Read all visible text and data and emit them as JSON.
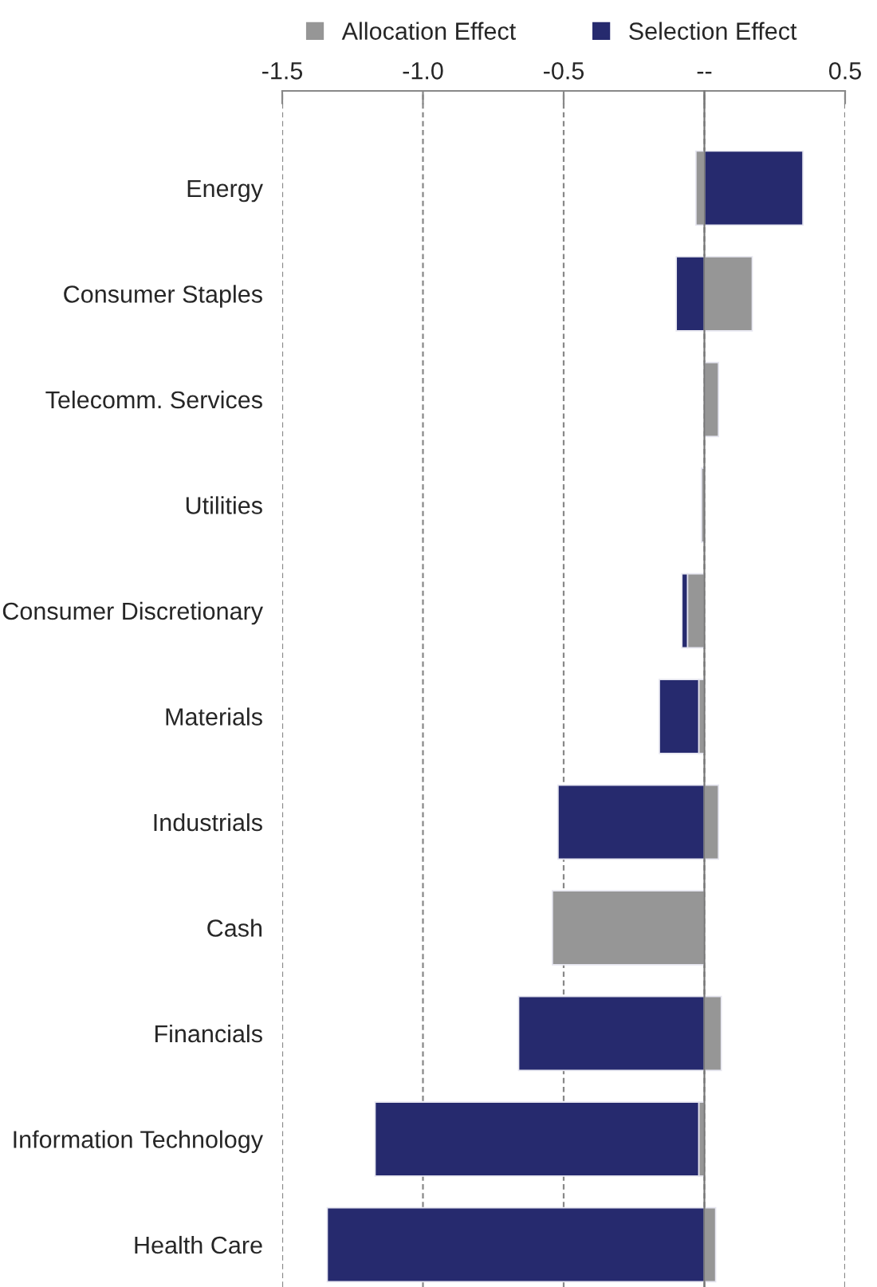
{
  "chart_data": {
    "type": "bar",
    "orientation": "horizontal",
    "stacked": true,
    "categories": [
      "Energy",
      "Consumer Staples",
      "Telecomm. Services",
      "Utilities",
      "Consumer Discretionary",
      "Materials",
      "Industrials",
      "Cash",
      "Financials",
      "Information Technology",
      "Health Care"
    ],
    "series": [
      {
        "name": "Allocation Effect",
        "color": "#969696",
        "values": [
          -0.03,
          0.17,
          0.05,
          -0.01,
          -0.06,
          -0.02,
          0.05,
          -0.54,
          0.06,
          -0.02,
          0.04
        ]
      },
      {
        "name": "Selection Effect",
        "color": "#262a6e",
        "values": [
          0.35,
          -0.1,
          null,
          null,
          -0.02,
          -0.14,
          -0.52,
          null,
          -0.66,
          -1.15,
          -1.34
        ]
      }
    ],
    "xlim": [
      -1.5,
      0.5
    ],
    "xticks": [
      -1.5,
      {
        "value": -1.0,
        "label": "-1.0"
      },
      -0.5,
      {
        "value": 0,
        "label": "--"
      },
      0.5
    ],
    "grid": "x",
    "legend": "top"
  }
}
